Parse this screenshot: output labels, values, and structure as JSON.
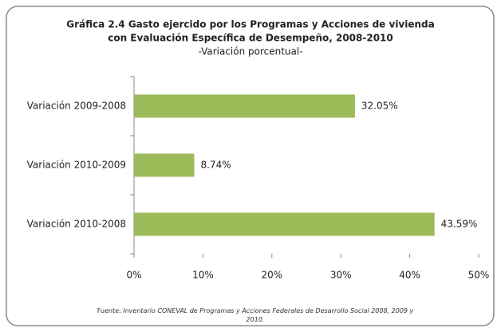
{
  "chart_data": {
    "type": "bar",
    "orientation": "horizontal",
    "title": [
      "Gráfica 2.4 Gasto ejercido por los Programas y Acciones de vivienda",
      "con Evaluación Específica de Desempeño, 2008-2010"
    ],
    "subtitle": "-Variación porcentual-",
    "categories": [
      "Variación 2009-2008",
      "Variación 2010-2009",
      "Variación 2010-2008"
    ],
    "values": [
      32.05,
      8.74,
      43.59
    ],
    "value_labels": [
      "32.05%",
      "8.74%",
      "43.59%"
    ],
    "color": "#9bbb59",
    "xlim": [
      0,
      50
    ],
    "xticks": [
      {
        "value": 0,
        "label": "0%"
      },
      {
        "value": 10,
        "label": "10%"
      },
      {
        "value": 20,
        "label": "20%"
      },
      {
        "value": 30,
        "label": "30%"
      },
      {
        "value": 40,
        "label": "40%"
      },
      {
        "value": 50,
        "label": "50%"
      }
    ],
    "grid": false,
    "source_label": "Fuente:",
    "source": "Inventario CONEVAL de Programas y Acciones Federales de Desarrollo Social 2008, 2009 y 2010."
  }
}
